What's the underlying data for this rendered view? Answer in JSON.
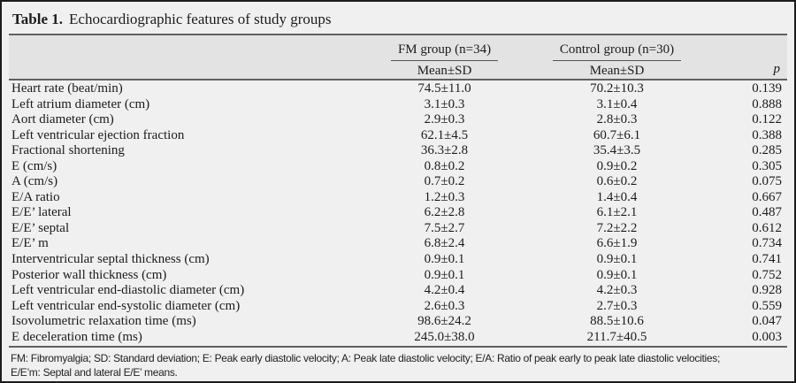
{
  "title": {
    "label": "Table 1.",
    "text": "Echocardiographic features of study groups"
  },
  "header": {
    "groups": [
      {
        "label": "FM group (n=34)",
        "sub": "Mean±SD"
      },
      {
        "label": "Control group (n=30)",
        "sub": "Mean±SD"
      }
    ],
    "p_label": "p"
  },
  "rows": [
    {
      "label": "Heart rate (beat/min)",
      "fm": "74.5±11.0",
      "control": "70.2±10.3",
      "p": "0.139"
    },
    {
      "label": "Left atrium diameter (cm)",
      "fm": "3.1±0.3",
      "control": "3.1±0.4",
      "p": "0.888"
    },
    {
      "label": "Aort diameter (cm)",
      "fm": "2.9±0.3",
      "control": "2.8±0.3",
      "p": "0.122"
    },
    {
      "label": "Left ventricular ejection fraction",
      "fm": "62.1±4.5",
      "control": "60.7±6.1",
      "p": "0.388"
    },
    {
      "label": "Fractional shortening",
      "fm": "36.3±2.8",
      "control": "35.4±3.5",
      "p": "0.285"
    },
    {
      "label": "E (cm/s)",
      "fm": "0.8±0.2",
      "control": "0.9±0.2",
      "p": "0.305"
    },
    {
      "label": "A (cm/s)",
      "fm": "0.7±0.2",
      "control": "0.6±0.2",
      "p": "0.075"
    },
    {
      "label": "E/A ratio",
      "fm": "1.2±0.3",
      "control": "1.4±0.4",
      "p": "0.667"
    },
    {
      "label": "E/E’ lateral",
      "fm": "6.2±2.8",
      "control": "6.1±2.1",
      "p": "0.487"
    },
    {
      "label": "E/E’ septal",
      "fm": "7.5±2.7",
      "control": "7.2±2.2",
      "p": "0.612"
    },
    {
      "label": "E/E’ m",
      "fm": "6.8±2.4",
      "control": "6.6±1.9",
      "p": "0.734"
    },
    {
      "label": "Interventricular septal thickness (cm)",
      "fm": "0.9±0.1",
      "control": "0.9±0.1",
      "p": "0.741"
    },
    {
      "label": "Posterior wall thickness (cm)",
      "fm": "0.9±0.1",
      "control": "0.9±0.1",
      "p": "0.752"
    },
    {
      "label": "Left ventricular end-diastolic diameter (cm)",
      "fm": "4.2±0.4",
      "control": "4.2±0.3",
      "p": "0.928"
    },
    {
      "label": "Left ventricular end-systolic diameter (cm)",
      "fm": "2.6±0.3",
      "control": "2.7±0.3",
      "p": "0.559"
    },
    {
      "label": "Isovolumetric relaxation time (ms)",
      "fm": "98.6±24.2",
      "control": "88.5±10.6",
      "p": "0.047"
    },
    {
      "label": "E deceleration time (ms)",
      "fm": "245.0±38.0",
      "control": "211.7±40.5",
      "p": "0.003"
    }
  ],
  "footnote_lines": [
    "FM: Fibromyalgia; SD: Standard deviation; E: Peak early diastolic velocity; A: Peak late diastolic velocity; E/A: Ratio of peak early to peak late diastolic velocities;",
    "E/E’m: Septal and lateral E/E’ means."
  ],
  "colors": {
    "page_bg": "#f0f0f0",
    "header_band_bg": "#e3e3e4",
    "rule": "#606060",
    "outer_border": "#1c1c1c",
    "text": "#1c1c1c"
  }
}
